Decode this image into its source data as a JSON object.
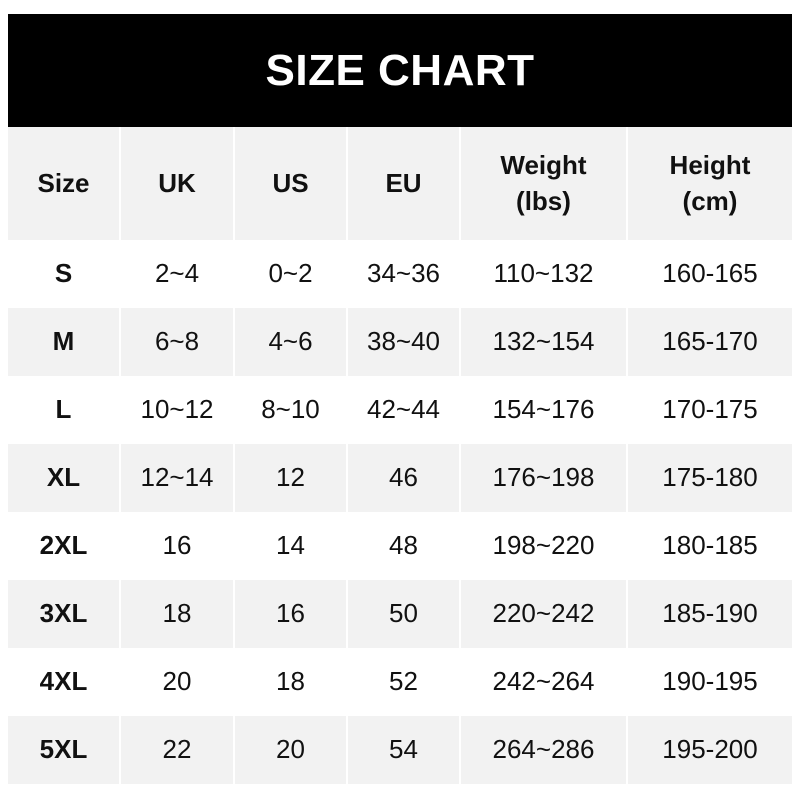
{
  "title": "SIZE CHART",
  "headers": [
    "Size",
    "UK",
    "US",
    "EU",
    "Weight\n(lbs)",
    "Height\n(cm)"
  ],
  "rows": [
    [
      "S",
      "2~4",
      "0~2",
      "34~36",
      "110~132",
      "160-165"
    ],
    [
      "M",
      "6~8",
      "4~6",
      "38~40",
      "132~154",
      "165-170"
    ],
    [
      "L",
      "10~12",
      "8~10",
      "42~44",
      "154~176",
      "170-175"
    ],
    [
      "XL",
      "12~14",
      "12",
      "46",
      "176~198",
      "175-180"
    ],
    [
      "2XL",
      "16",
      "14",
      "48",
      "198~220",
      "180-185"
    ],
    [
      "3XL",
      "18",
      "16",
      "50",
      "220~242",
      "185-190"
    ],
    [
      "4XL",
      "20",
      "18",
      "52",
      "242~264",
      "190-195"
    ],
    [
      "5XL",
      "22",
      "20",
      "54",
      "264~286",
      "195-200"
    ]
  ],
  "colors": {
    "header_bg": "#000000",
    "stripe": "#f2f2f2"
  }
}
